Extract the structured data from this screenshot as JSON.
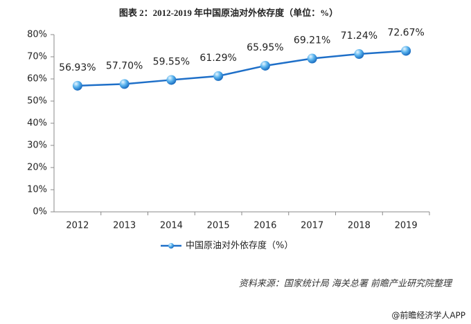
{
  "chart_data": {
    "type": "line",
    "title": "图表 2：2012-2019 年中国原油对外依存度（单位：%）",
    "categories": [
      "2012",
      "2013",
      "2014",
      "2015",
      "2016",
      "2017",
      "2018",
      "2019"
    ],
    "series": [
      {
        "name": "中国原油对外依存度（%）",
        "color": "#1e6fc8",
        "values": [
          56.93,
          57.7,
          59.55,
          61.29,
          65.95,
          69.21,
          71.24,
          72.67
        ],
        "value_labels": [
          "56.93%",
          "57.70%",
          "59.55%",
          "61.29%",
          "65.95%",
          "69.21%",
          "71.24%",
          "72.67%"
        ]
      }
    ],
    "ylim": [
      0,
      80
    ],
    "yticks": [
      {
        "value": 0,
        "label": "0%"
      },
      {
        "value": 10,
        "label": "10%"
      },
      {
        "value": 20,
        "label": "20%"
      },
      {
        "value": 30,
        "label": "30%"
      },
      {
        "value": 40,
        "label": "40%"
      },
      {
        "value": 50,
        "label": "50%"
      },
      {
        "value": 60,
        "label": "60%"
      },
      {
        "value": 70,
        "label": "70%"
      },
      {
        "value": 80,
        "label": "80%"
      }
    ],
    "grid": false,
    "legend": "bottom",
    "source": "资料来源：国家统计局 海关总署 前瞻产业研究院整理",
    "watermark": "@前瞻经济学人APP"
  }
}
